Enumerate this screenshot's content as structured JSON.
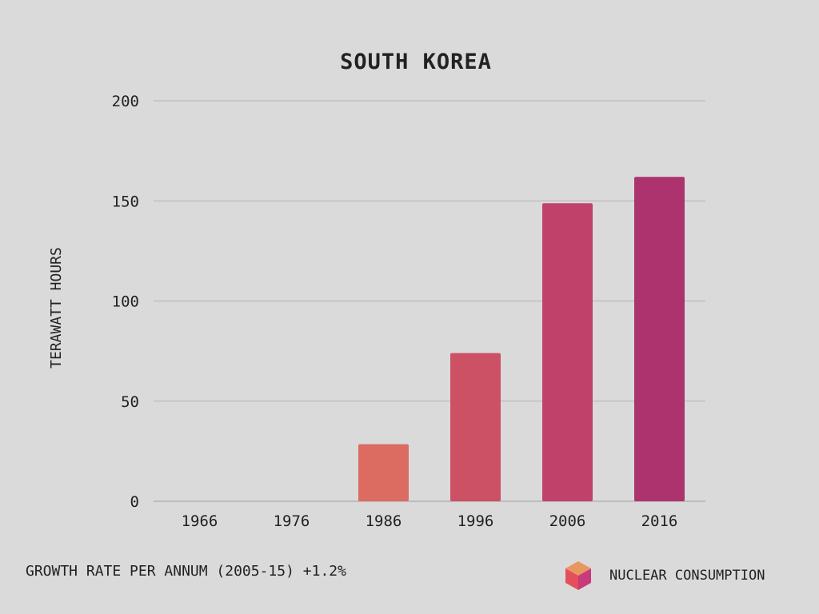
{
  "chart_data": {
    "type": "bar",
    "title": "SOUTH KOREA",
    "xlabel": "",
    "ylabel": "TERAWATT HOURS",
    "categories": [
      "1966",
      "1976",
      "1986",
      "1996",
      "2006",
      "2016"
    ],
    "series": [
      {
        "name": "NUCLEAR CONSUMPTION",
        "values": [
          0,
          0,
          28.5,
          74,
          148.8,
          162
        ]
      }
    ],
    "bar_colors": [
      "#dc6b62",
      "#dc6b62",
      "#dc6b62",
      "#cc5164",
      "#c0426a",
      "#ac336e"
    ],
    "ylim": [
      0,
      200
    ],
    "yticks": [
      "0",
      "50",
      "100",
      "150",
      "200"
    ],
    "grid": true,
    "legend": {
      "placement": "bottom-right",
      "label": "NUCLEAR CONSUMPTION",
      "icon": "cube-icon"
    }
  },
  "footer": {
    "note": "GROWTH RATE PER ANNUM (2005-15) +1.2%"
  }
}
